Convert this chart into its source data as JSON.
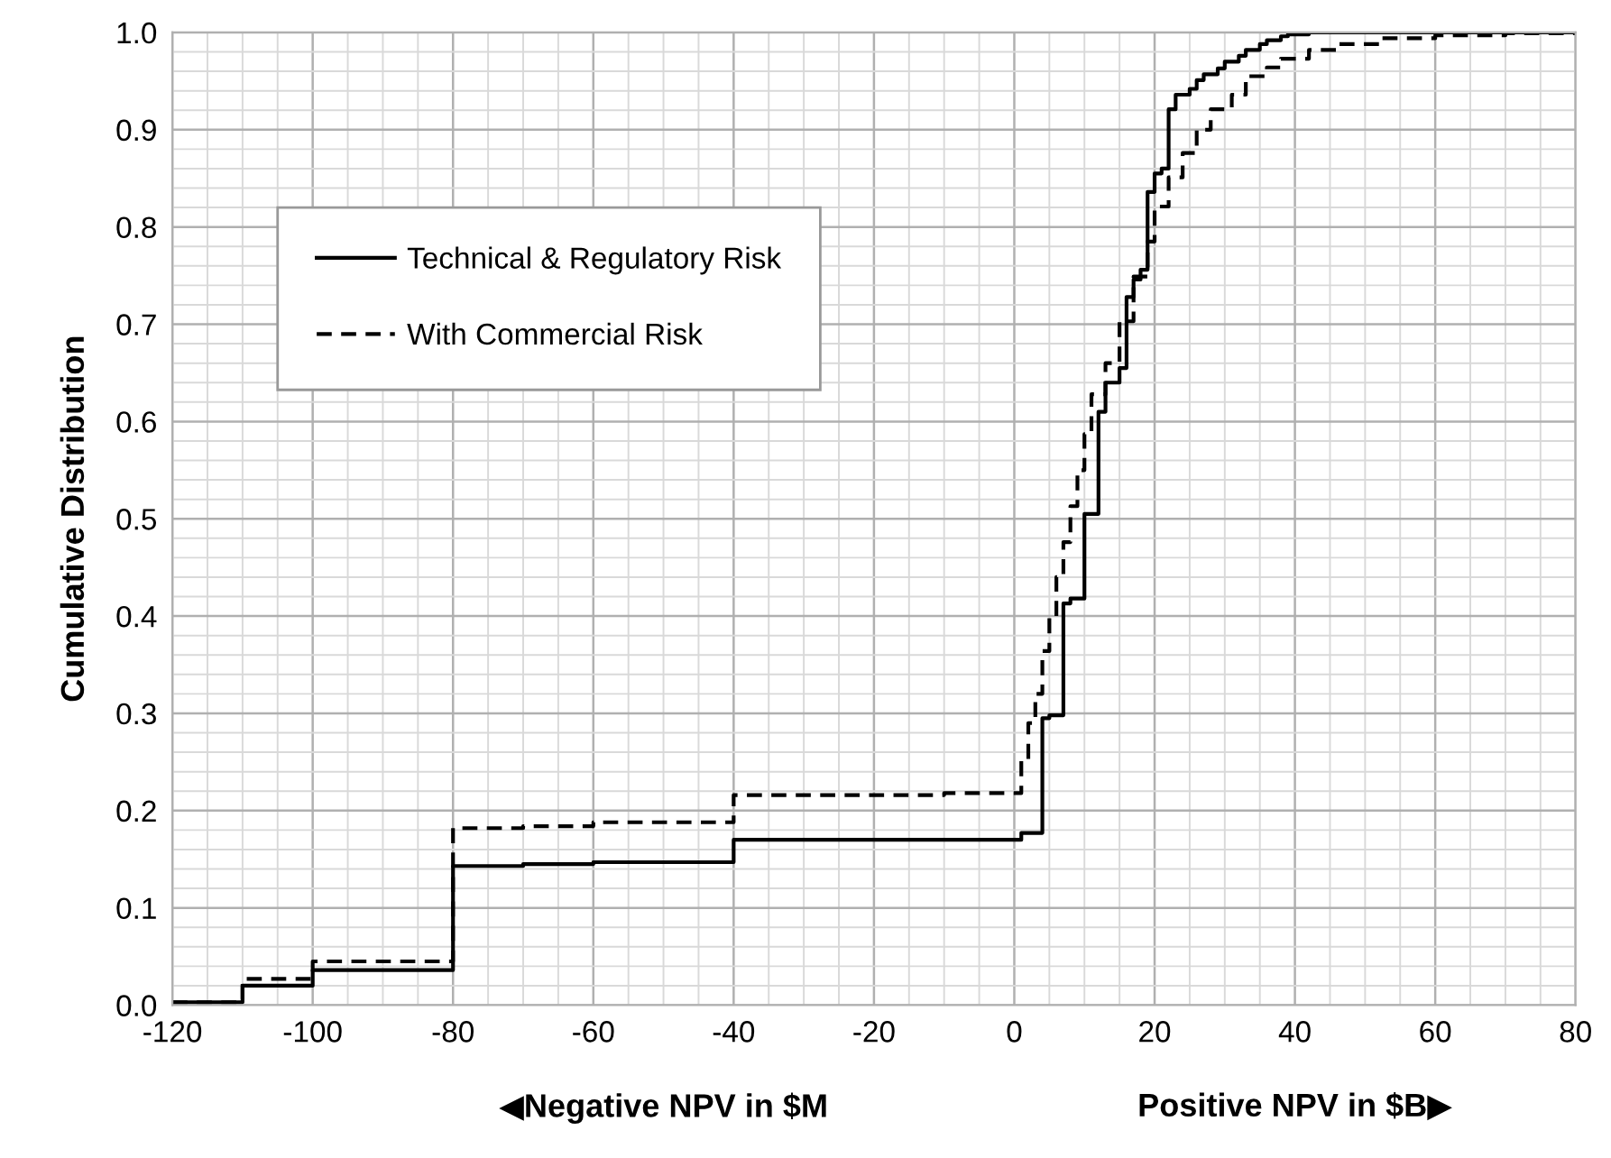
{
  "chart_data": {
    "type": "step",
    "ylabel": "Cumulative Distribution",
    "annotations": [
      "◀Negative NPV in $M",
      "Positive NPV in $B▶"
    ],
    "xlim": [
      -120,
      80
    ],
    "xticks": [
      -120,
      -100,
      -80,
      -60,
      -40,
      -20,
      0,
      20,
      40,
      60,
      80
    ],
    "ylim": [
      0,
      1
    ],
    "yticks": [
      {
        "value": 0,
        "label": "0.0"
      },
      {
        "value": 0.1,
        "label": "0.1"
      },
      {
        "value": 0.2,
        "label": "0.2"
      },
      {
        "value": 0.3,
        "label": "0.3"
      },
      {
        "value": 0.4,
        "label": "0.4"
      },
      {
        "value": 0.5,
        "label": "0.5"
      },
      {
        "value": 0.6,
        "label": "0.6"
      },
      {
        "value": 0.7,
        "label": "0.7"
      },
      {
        "value": 0.8,
        "label": "0.8"
      },
      {
        "value": 0.9,
        "label": "0.9"
      },
      {
        "value": 1,
        "label": "1.0"
      }
    ],
    "grid": true,
    "legend": "top left",
    "marker": "none",
    "series": [
      {
        "name": "Technical & Regulatory Risk",
        "color": "#000000",
        "line_style": "solid",
        "x": [
          -120,
          -110,
          -100,
          -80,
          -70,
          -60,
          -40,
          1,
          4,
          5,
          7,
          8,
          10,
          12,
          13,
          15,
          16,
          17,
          18,
          19,
          20,
          21,
          22,
          23,
          25,
          26,
          27,
          29,
          30,
          32,
          33,
          35,
          36,
          38,
          39,
          42,
          80
        ],
        "values": [
          0.003,
          0.02,
          0.036,
          0.143,
          0.145,
          0.147,
          0.17,
          0.177,
          0.295,
          0.298,
          0.413,
          0.418,
          0.505,
          0.61,
          0.64,
          0.655,
          0.728,
          0.746,
          0.756,
          0.836,
          0.855,
          0.86,
          0.921,
          0.936,
          0.942,
          0.951,
          0.957,
          0.963,
          0.97,
          0.976,
          0.982,
          0.988,
          0.992,
          0.996,
          0.998,
          1.0,
          1.0
        ]
      },
      {
        "name": "With Commercial Risk",
        "color": "#000000",
        "line_style": "dashed",
        "x": [
          -120,
          -110,
          -100,
          -80,
          -70,
          -60,
          -40,
          -10,
          1,
          2,
          3,
          4,
          5,
          6,
          7,
          8,
          9,
          10,
          11,
          13,
          15,
          17,
          19,
          20,
          22,
          24,
          26,
          28,
          31,
          33,
          36,
          38,
          42,
          46,
          52,
          60,
          70,
          80
        ],
        "values": [
          0.003,
          0.027,
          0.045,
          0.182,
          0.184,
          0.188,
          0.216,
          0.218,
          0.253,
          0.29,
          0.32,
          0.364,
          0.4,
          0.44,
          0.476,
          0.513,
          0.55,
          0.587,
          0.628,
          0.66,
          0.703,
          0.749,
          0.785,
          0.821,
          0.851,
          0.876,
          0.9,
          0.921,
          0.936,
          0.955,
          0.964,
          0.973,
          0.982,
          0.988,
          0.994,
          0.997,
          0.999,
          1.0
        ]
      }
    ]
  }
}
